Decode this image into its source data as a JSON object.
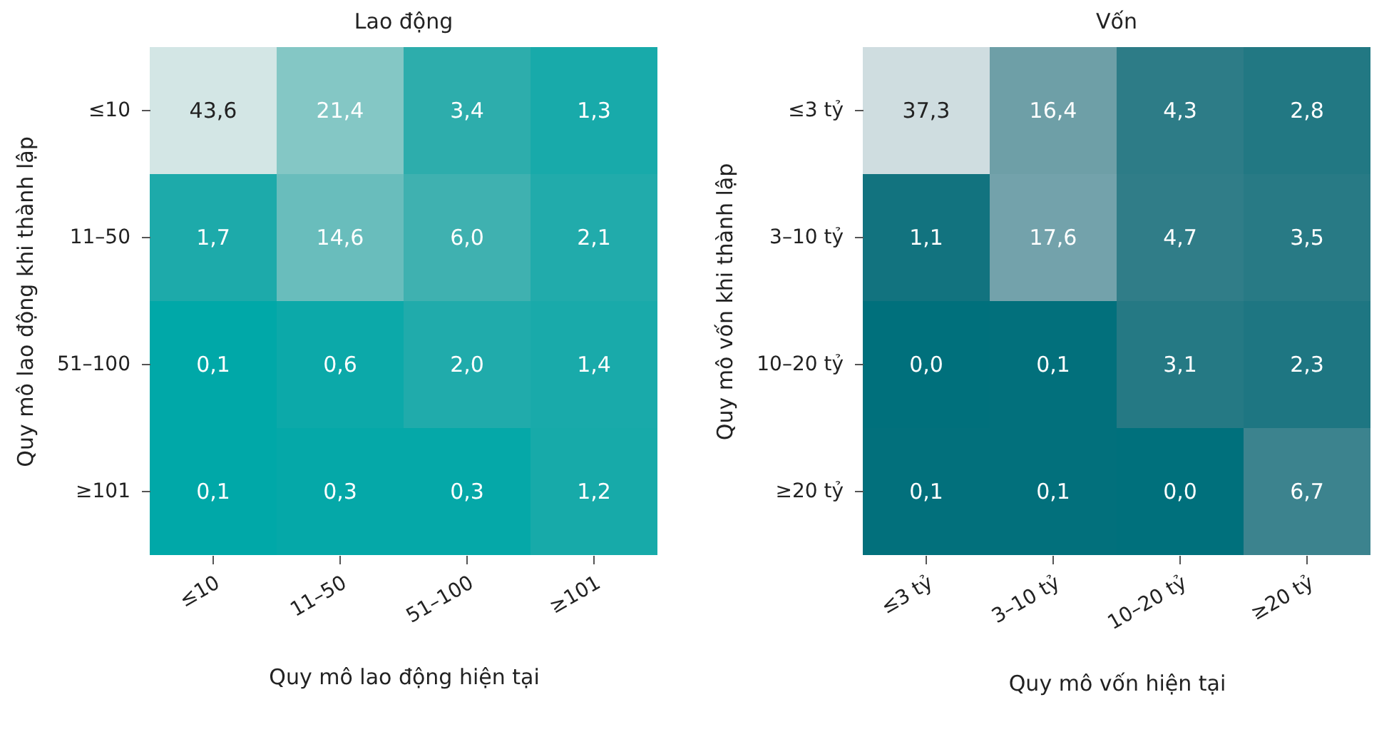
{
  "chart_data": [
    {
      "type": "heatmap",
      "title": "Lao động",
      "xlabel": "Quy mô lao động hiện tại",
      "ylabel": "Quy mô lao động khi thành lập",
      "categories": [
        "≤10",
        "11–50",
        "51–100",
        "≥101"
      ],
      "y_categories": [
        "≤10",
        "11–50",
        "51–100",
        "≥101"
      ],
      "cells": [
        [
          43.6,
          21.4,
          3.4,
          1.3
        ],
        [
          1.7,
          14.6,
          6.0,
          2.1
        ],
        [
          0.1,
          0.6,
          2.0,
          1.4
        ],
        [
          0.1,
          0.3,
          0.3,
          1.2
        ]
      ],
      "cell_labels": [
        [
          "43,6",
          "21,4",
          "3,4",
          "1,3"
        ],
        [
          "1,7",
          "14,6",
          "6,0",
          "2,1"
        ],
        [
          "0,1",
          "0,6",
          "2,0",
          "1,4"
        ],
        [
          "0,1",
          "0,3",
          "0,3",
          "1,2"
        ]
      ],
      "colors": [
        "#00a8a8",
        "#d3e6e5"
      ]
    },
    {
      "type": "heatmap",
      "title": "Vốn",
      "xlabel": "Quy mô vốn hiện tại",
      "ylabel": "Quy mô vốn khi thành lập",
      "categories": [
        "≤3 tỷ",
        "3–10 tỷ",
        "10–20 tỷ",
        "≥20 tỷ"
      ],
      "y_categories": [
        "≤3 tỷ",
        "3–10 tỷ",
        "10–20 tỷ",
        "≥20 tỷ"
      ],
      "cells": [
        [
          37.3,
          16.4,
          4.3,
          2.8
        ],
        [
          1.1,
          17.6,
          4.7,
          3.5
        ],
        [
          0.0,
          0.1,
          3.1,
          2.3
        ],
        [
          0.1,
          0.1,
          0.0,
          6.7
        ]
      ],
      "cell_labels": [
        [
          "37,3",
          "16,4",
          "4,3",
          "2,8"
        ],
        [
          "1,1",
          "17,6",
          "4,7",
          "3,5"
        ],
        [
          "0,0",
          "0,1",
          "3,1",
          "2,3"
        ],
        [
          "0,1",
          "0,1",
          "0,0",
          "6,7"
        ]
      ],
      "colors": [
        "#00707c",
        "#cfdde0"
      ]
    }
  ]
}
